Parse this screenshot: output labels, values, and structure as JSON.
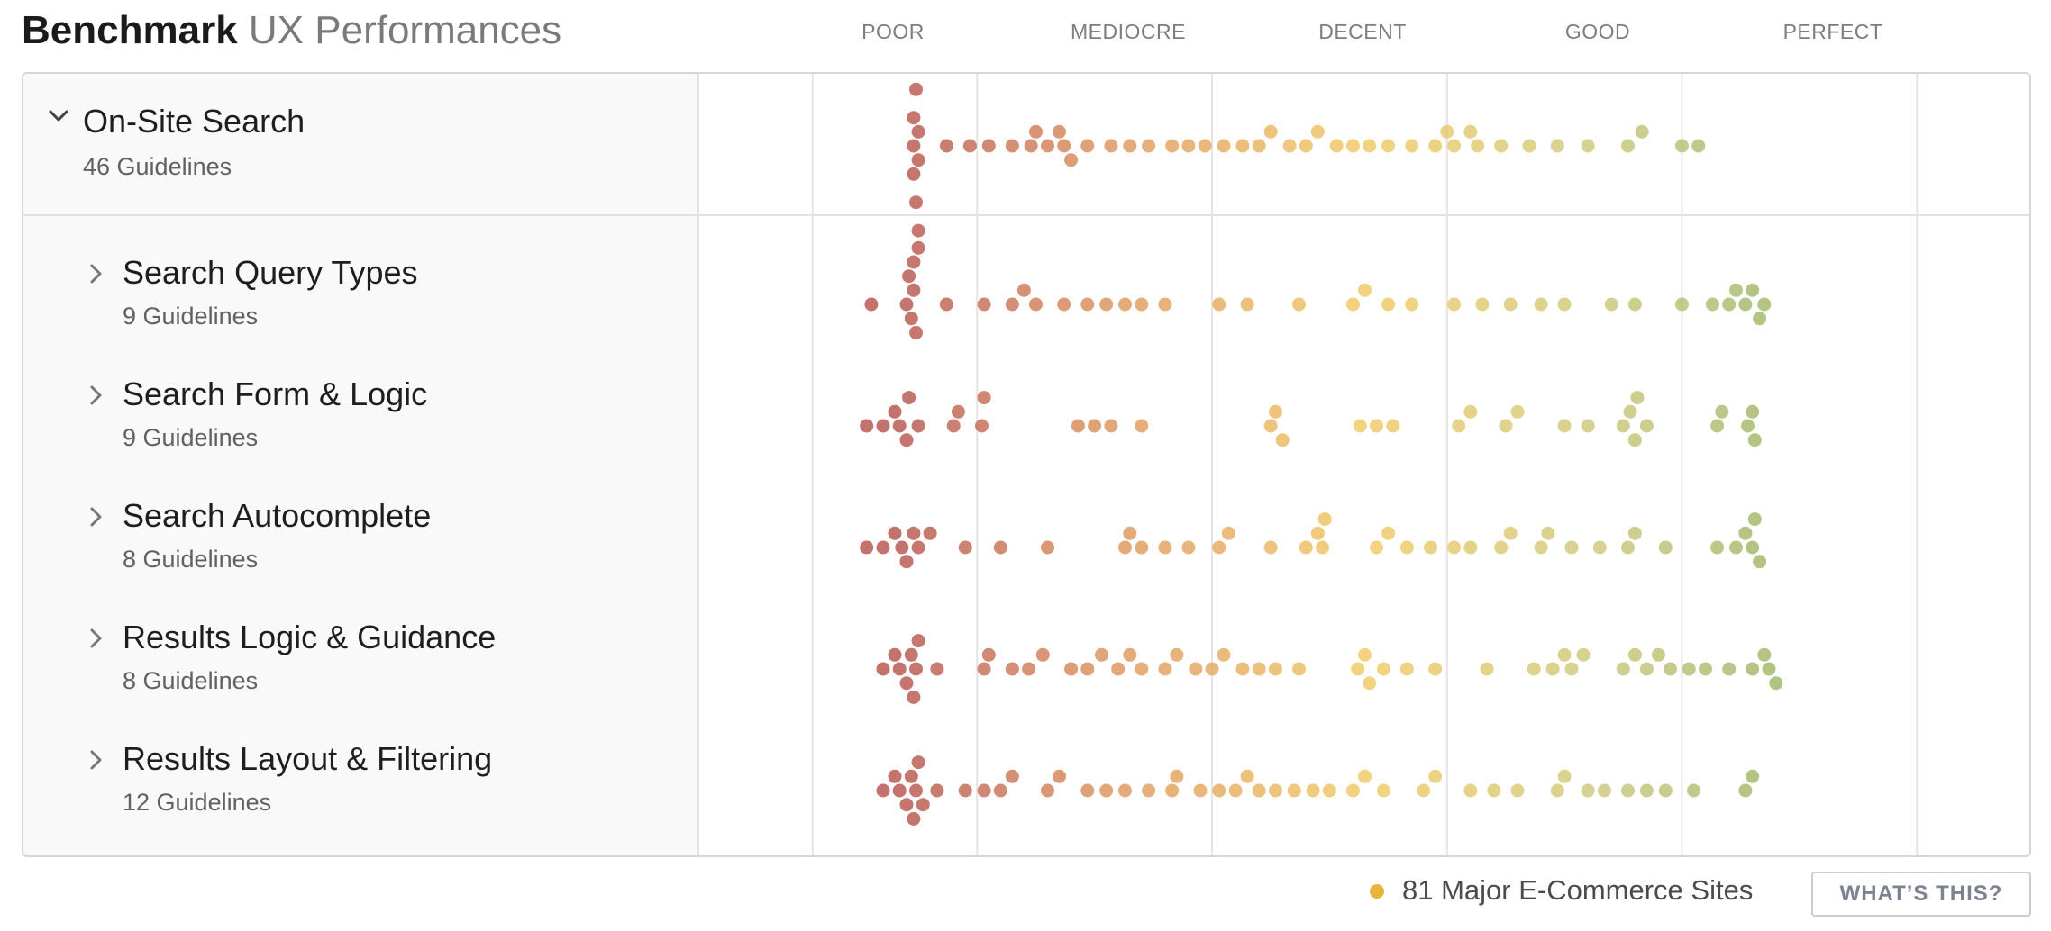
{
  "title": {
    "bold": "Benchmark",
    "light": "UX Performances"
  },
  "scale_labels": [
    "POOR",
    "MEDIOCRE",
    "DECENT",
    "GOOD",
    "PERFECT"
  ],
  "rows": [
    {
      "title": "On-Site Search",
      "subtitle": "46 Guidelines",
      "expanded": true
    },
    {
      "title": "Search Query Types",
      "subtitle": "9 Guidelines",
      "expanded": false
    },
    {
      "title": "Search Form & Logic",
      "subtitle": "9 Guidelines",
      "expanded": false
    },
    {
      "title": "Search Autocomplete",
      "subtitle": "8 Guidelines",
      "expanded": false
    },
    {
      "title": "Results Logic & Guidance",
      "subtitle": "8 Guidelines",
      "expanded": false
    },
    {
      "title": "Results Layout & Filtering",
      "subtitle": "12 Guidelines",
      "expanded": false
    }
  ],
  "footer": {
    "legend_text": "81 Major E-Commerce Sites",
    "button_label": "WHAT’S THIS?"
  },
  "colors": {
    "poor": "#b24a45",
    "mediocre": "#dd9455",
    "decent": "#f0c75c",
    "good": "#c9c574",
    "perfect": "#8aab5a",
    "legend_dot": "#e8b53c"
  },
  "chart_data": {
    "type": "scatter",
    "description_of_scale": "beeswarm of per-site scores on a Poor to Perfect scale; x in scale units where 0 = Poor and 4 = Perfect",
    "xlim": [
      0,
      4
    ],
    "series": [
      {
        "name": "On-Site Search",
        "x": [
          0.08,
          0.08,
          0.08,
          0.09,
          0.09,
          0.09,
          0.1,
          0.1,
          0.1,
          0.1,
          0.22,
          0.32,
          0.4,
          0.5,
          0.58,
          0.6,
          0.65,
          0.7,
          0.72,
          0.75,
          0.82,
          0.92,
          1.0,
          1.08,
          1.18,
          1.25,
          1.32,
          1.4,
          1.48,
          1.55,
          1.6,
          1.68,
          1.75,
          1.8,
          1.88,
          1.95,
          2.02,
          2.1,
          2.2,
          2.3,
          2.38,
          2.48,
          2.58,
          2.7,
          2.82,
          2.95,
          3.12,
          3.18,
          3.35,
          3.42,
          2.35,
          2.45
        ]
      },
      {
        "name": "Search Query Types",
        "x": [
          -0.1,
          0.05,
          0.06,
          0.07,
          0.08,
          0.08,
          0.09,
          0.1,
          0.22,
          0.38,
          0.5,
          0.55,
          0.6,
          0.72,
          0.82,
          0.9,
          0.98,
          1.05,
          1.15,
          1.38,
          1.5,
          1.72,
          1.95,
          2.0,
          2.1,
          2.2,
          2.38,
          2.5,
          2.62,
          2.75,
          2.85,
          3.05,
          3.15,
          3.35,
          3.48,
          3.55,
          3.58,
          3.62,
          3.65,
          3.68,
          3.7
        ]
      },
      {
        "name": "Search Form & Logic",
        "x": [
          -0.12,
          -0.05,
          0.0,
          0.02,
          0.05,
          0.06,
          0.1,
          0.25,
          0.27,
          0.37,
          0.38,
          0.78,
          0.85,
          0.92,
          1.05,
          1.6,
          1.62,
          1.65,
          1.98,
          2.05,
          2.12,
          2.4,
          2.45,
          2.6,
          2.65,
          2.85,
          2.95,
          3.1,
          3.13,
          3.15,
          3.16,
          3.2,
          3.5,
          3.52,
          3.63,
          3.65,
          3.66
        ]
      },
      {
        "name": "Search Autocomplete",
        "x": [
          -0.12,
          -0.05,
          0.0,
          0.03,
          0.05,
          0.08,
          0.1,
          0.15,
          0.3,
          0.45,
          0.65,
          0.98,
          1.0,
          1.05,
          1.15,
          1.25,
          1.38,
          1.42,
          1.6,
          1.75,
          1.8,
          1.82,
          1.83,
          2.05,
          2.1,
          2.18,
          2.28,
          2.38,
          2.45,
          2.58,
          2.62,
          2.75,
          2.78,
          2.88,
          3.0,
          3.12,
          3.15,
          3.28,
          3.5,
          3.58,
          3.62,
          3.65,
          3.66,
          3.68
        ]
      },
      {
        "name": "Results Logic & Guidance",
        "x": [
          -0.05,
          0.0,
          0.02,
          0.05,
          0.07,
          0.08,
          0.09,
          0.1,
          0.18,
          0.38,
          0.4,
          0.5,
          0.57,
          0.63,
          0.75,
          0.82,
          0.88,
          0.95,
          1.0,
          1.05,
          1.15,
          1.2,
          1.28,
          1.35,
          1.4,
          1.48,
          1.55,
          1.62,
          1.72,
          1.97,
          2.0,
          2.02,
          2.08,
          2.18,
          2.3,
          2.52,
          2.72,
          2.8,
          2.85,
          2.88,
          2.93,
          3.1,
          3.15,
          3.2,
          3.25,
          3.3,
          3.38,
          3.45,
          3.55,
          3.65,
          3.7,
          3.72,
          3.75
        ]
      },
      {
        "name": "Results Layout & Filtering",
        "x": [
          -0.05,
          0.0,
          0.02,
          0.05,
          0.07,
          0.08,
          0.09,
          0.1,
          0.12,
          0.18,
          0.3,
          0.38,
          0.45,
          0.5,
          0.65,
          0.7,
          0.82,
          0.9,
          0.98,
          1.08,
          1.18,
          1.2,
          1.3,
          1.38,
          1.45,
          1.5,
          1.55,
          1.62,
          1.7,
          1.78,
          1.85,
          1.95,
          2.0,
          2.08,
          2.25,
          2.3,
          2.45,
          2.55,
          2.65,
          2.82,
          2.85,
          2.95,
          3.02,
          3.12,
          3.2,
          3.28,
          3.4,
          3.62,
          3.65
        ]
      }
    ]
  }
}
